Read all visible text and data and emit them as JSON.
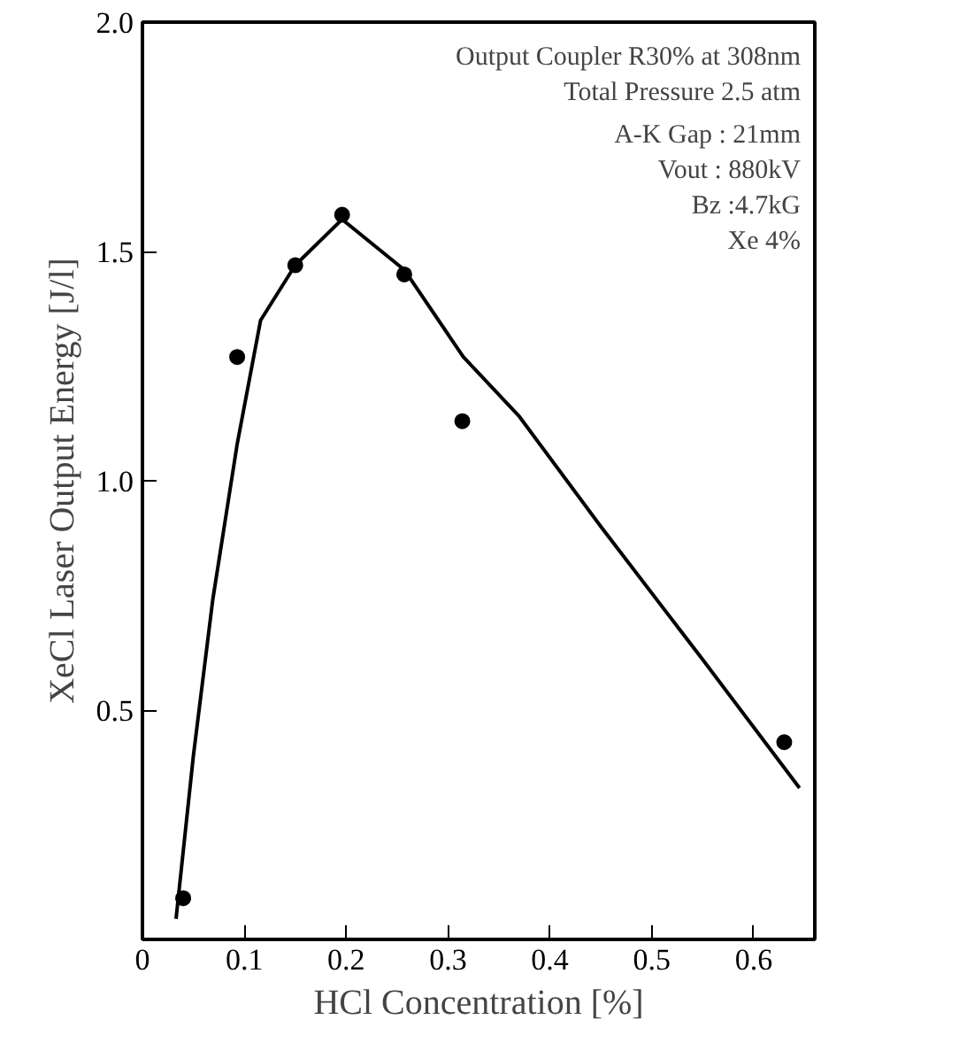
{
  "chart_data": {
    "type": "scatter",
    "xlabel": "HCl Concentration [%]",
    "ylabel": "XeCl Laser Output Energy [J/l]",
    "xlim": [
      0,
      0.66
    ],
    "ylim": [
      0,
      2.0
    ],
    "xticks": [
      0,
      0.1,
      0.2,
      0.3,
      0.4,
      0.5,
      0.6
    ],
    "yticks": [
      0.5,
      {
        "value": 1.0,
        "label": "1.0"
      },
      1.5,
      {
        "value": 2.0,
        "label": "2.0"
      }
    ],
    "grid": false,
    "marker": "circle",
    "series": [
      {
        "color": "#000000",
        "x": [
          0.04,
          0.093,
          0.15,
          0.196,
          0.257,
          0.314,
          0.63
        ],
        "values": [
          0.09,
          1.27,
          1.47,
          1.58,
          1.45,
          1.13,
          0.43
        ]
      },
      {
        "type": "line",
        "color": "#000000",
        "marker": "none",
        "line_style": "solid",
        "x": [
          0.033,
          0.05,
          0.069,
          0.093,
          0.116,
          0.15,
          0.196,
          0.257,
          0.315,
          0.37,
          0.45,
          0.55,
          0.645
        ],
        "values": [
          0.045,
          0.4,
          0.74,
          1.08,
          1.35,
          1.47,
          1.57,
          1.46,
          1.27,
          1.14,
          0.9,
          0.61,
          0.33
        ]
      }
    ],
    "annotations": [
      "Output Coupler R30% at 308nm",
      "Total Pressure 2.5 atm",
      "A-K Gap : 21mm",
      "Vout : 880kV",
      "Bz :4.7kG",
      "Xe 4%"
    ]
  }
}
